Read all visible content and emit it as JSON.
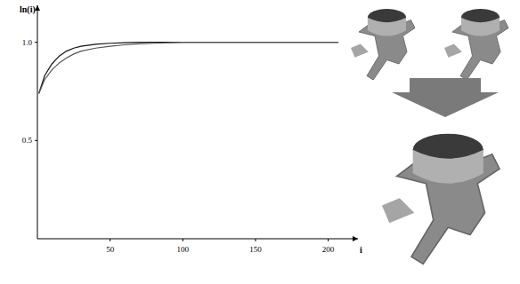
{
  "chart_data": {
    "type": "line",
    "x_label": "i",
    "y_label": "ln(i)",
    "x": [
      1,
      5,
      10,
      15,
      20,
      25,
      30,
      40,
      50,
      60,
      70,
      80,
      100,
      150,
      207
    ],
    "series": [
      {
        "color": "#111111",
        "values": [
          0.74,
          0.83,
          0.89,
          0.93,
          0.955,
          0.97,
          0.98,
          0.99,
          0.995,
          0.998,
          1.0,
          1.0,
          1.0,
          1.0,
          1.0
        ]
      },
      {
        "color": "#555555",
        "values": [
          0.74,
          0.81,
          0.86,
          0.895,
          0.92,
          0.94,
          0.955,
          0.97,
          0.98,
          0.987,
          0.992,
          0.995,
          1.0,
          1.0,
          1.0
        ]
      }
    ],
    "xlim": [
      0,
      218
    ],
    "ylim": [
      0,
      1.17
    ],
    "xticks": [
      50,
      100,
      150,
      200
    ],
    "yticks": [
      0.5,
      {
        "value": 1.0,
        "label": "1.0"
      }
    ],
    "grid": false
  }
}
